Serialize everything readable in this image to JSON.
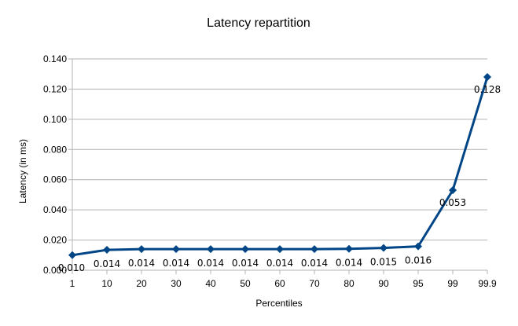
{
  "chart_data": {
    "type": "line",
    "title": "Latency repartition",
    "xlabel": "Percentiles",
    "ylabel": "Latency (in ms)",
    "categories": [
      "1",
      "10",
      "20",
      "30",
      "40",
      "50",
      "60",
      "70",
      "80",
      "90",
      "95",
      "99",
      "99.9"
    ],
    "series": [
      {
        "values": [
          0.01,
          0.0135,
          0.014,
          0.014,
          0.014,
          0.014,
          0.014,
          0.014,
          0.0142,
          0.0148,
          0.0158,
          0.053,
          0.128
        ],
        "data_labels": [
          "0.010",
          "0.014",
          "0.014",
          "0.014",
          "0.014",
          "0.014",
          "0.014",
          "0.014",
          "0.014",
          "0.015",
          "0.016",
          "0.053",
          "0.128"
        ],
        "color": "#004586",
        "marker": "diamond"
      }
    ],
    "ylim": [
      0,
      0.14
    ],
    "yticks": [
      "0.000",
      "0.020",
      "0.040",
      "0.060",
      "0.080",
      "0.100",
      "0.120",
      "0.140"
    ],
    "grid": true,
    "legend": "none"
  }
}
